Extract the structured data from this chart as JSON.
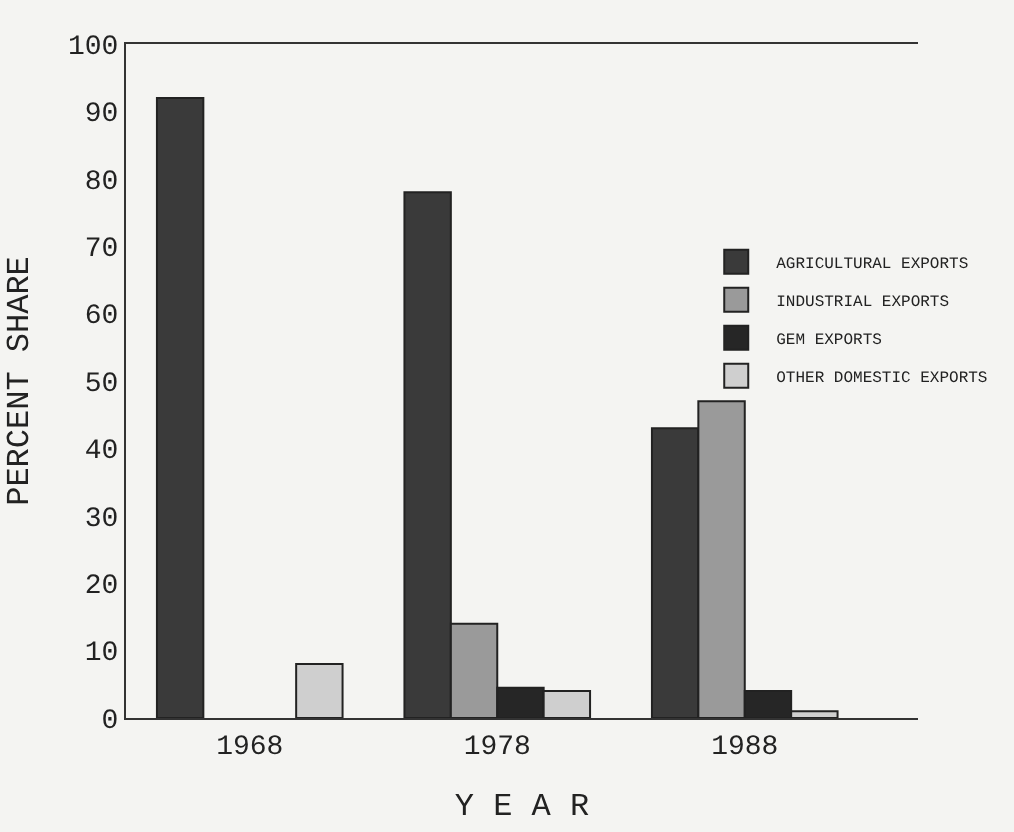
{
  "chart_data": {
    "type": "bar",
    "xlabel": "Y E A R",
    "ylabel": "PERCENT SHARE",
    "categories": [
      "1968",
      "1978",
      "1988"
    ],
    "series": [
      {
        "name": "AGRICULTURAL EXPORTS",
        "color": "#3a3a3a",
        "values": [
          92,
          78,
          43
        ]
      },
      {
        "name": "INDUSTRIAL EXPORTS",
        "color": "#9a9a9a",
        "values": [
          null,
          14,
          47
        ]
      },
      {
        "name": "GEM EXPORTS",
        "color": "#262626",
        "values": [
          null,
          4.5,
          4
        ]
      },
      {
        "name": "OTHER DOMESTIC EXPORTS",
        "color": "#cfcfcf",
        "values": [
          8,
          4,
          1
        ]
      }
    ],
    "ylim": [
      0,
      100
    ],
    "yticks": [
      0,
      10,
      20,
      30,
      40,
      50,
      60,
      70,
      80,
      90,
      100
    ],
    "grid": false,
    "legend": "right"
  }
}
